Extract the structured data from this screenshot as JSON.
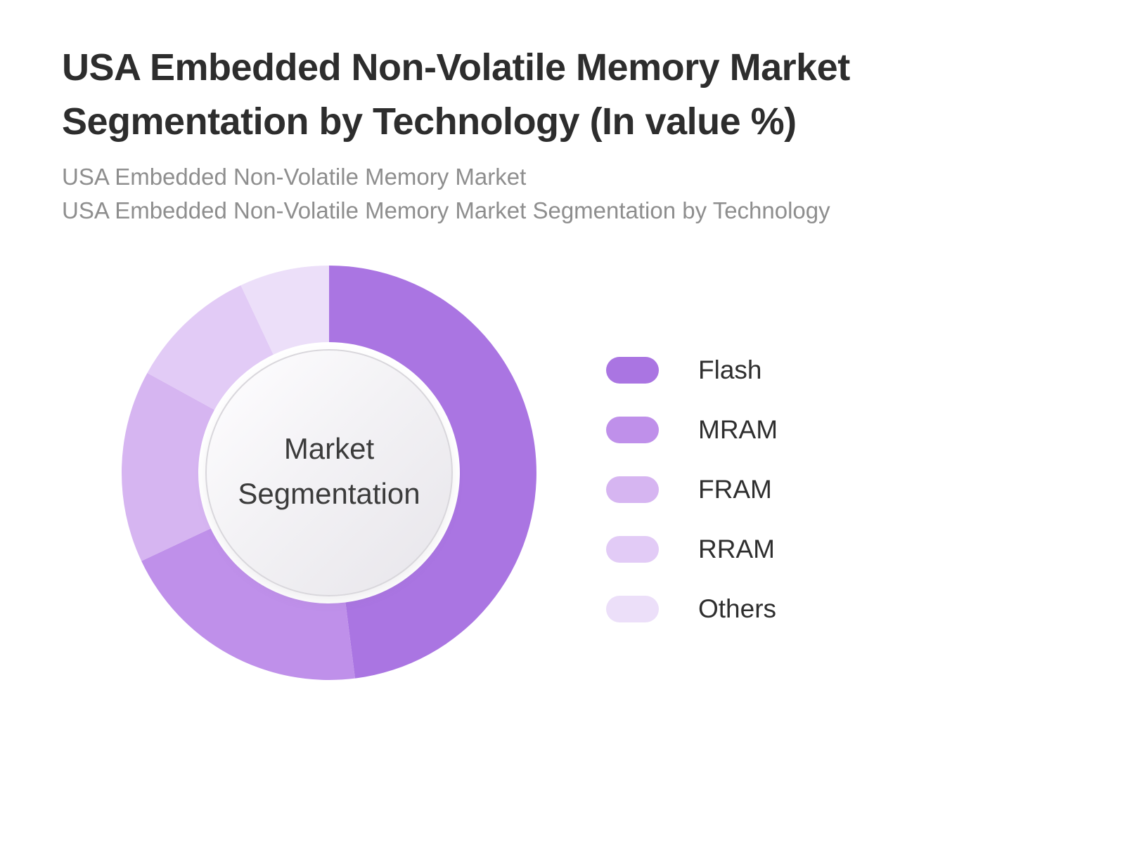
{
  "page": {
    "title_lines": [
      "USA Embedded Non-Volatile Memory Market",
      "Segmentation by Technology (In value %)"
    ],
    "subtitle_lines": [
      "USA Embedded Non-Volatile Memory Market",
      "USA Embedded Non-Volatile Memory Market Segmentation by Technology"
    ]
  },
  "chart_data": {
    "type": "pie",
    "variant": "donut",
    "title": "USA Embedded Non-Volatile Memory Market Segmentation by Technology (In value %)",
    "center_label_lines": [
      "Market",
      "Segmentation"
    ],
    "categories": [
      "Flash",
      "MRAM",
      "FRAM",
      "RRAM",
      "Others"
    ],
    "values": [
      48,
      20,
      15,
      10,
      7
    ],
    "unit": "%",
    "colors": [
      "#aa75e2",
      "#bf90ea",
      "#d6b5f1",
      "#e2cbf6",
      "#ecdff9"
    ],
    "start_angle_deg": 0,
    "direction": "clockwise",
    "legend_position": "right",
    "center_circle_color": "#eeedf0",
    "data_labels_shown": false
  }
}
